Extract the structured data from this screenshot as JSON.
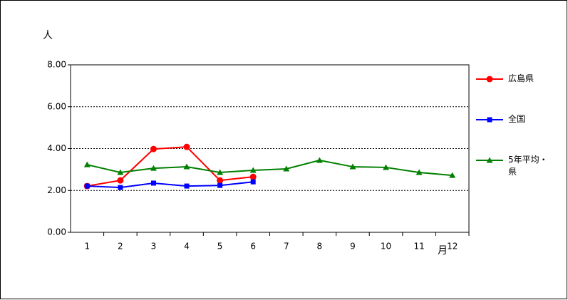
{
  "chart_data": {
    "type": "line",
    "y_label": "人",
    "x_label": "月",
    "categories": [
      "1",
      "2",
      "3",
      "4",
      "5",
      "6",
      "7",
      "8",
      "9",
      "10",
      "11",
      "12"
    ],
    "series": [
      {
        "name": "広島県",
        "color": "#ff0000",
        "marker": "circle",
        "values": [
          2.21,
          2.48,
          3.98,
          4.08,
          2.48,
          2.65,
          null,
          null,
          null,
          null,
          null,
          null
        ]
      },
      {
        "name": "全国",
        "color": "#0000ff",
        "marker": "square",
        "values": [
          2.21,
          2.14,
          2.35,
          2.21,
          2.24,
          2.41,
          null,
          null,
          null,
          null,
          null,
          null
        ]
      },
      {
        "name": "5年平均・県",
        "color": "#008000",
        "marker": "triangle",
        "values": [
          3.23,
          2.86,
          3.06,
          3.13,
          2.86,
          2.96,
          3.03,
          3.44,
          3.13,
          3.1,
          2.86,
          2.72
        ]
      }
    ],
    "ylim": [
      0,
      8
    ],
    "yticks": [
      {
        "value": 0,
        "label": "0.00"
      },
      {
        "value": 2,
        "label": "2.00"
      },
      {
        "value": 4,
        "label": "4.00"
      },
      {
        "value": 6,
        "label": "6.00"
      },
      {
        "value": 8,
        "label": "8.00"
      }
    ],
    "grid": true,
    "legend": "right"
  }
}
